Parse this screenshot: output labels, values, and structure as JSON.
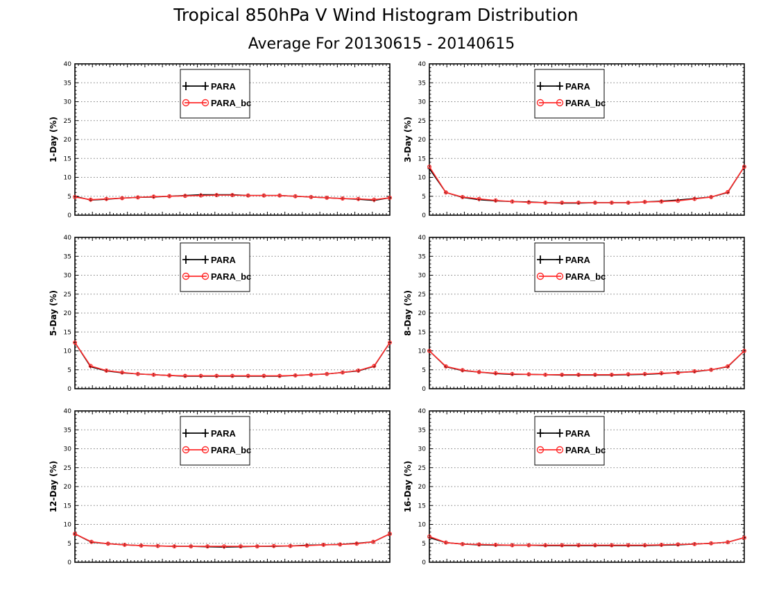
{
  "title": "Tropical 850hPa V Wind Histogram Distribution",
  "subtitle": "Average For 20130615 - 20140615",
  "chart_data": [
    {
      "type": "line",
      "ylabel": "1-Day (%)",
      "ylim": [
        0,
        40
      ],
      "yticks": [
        "0",
        "5",
        "10",
        "15",
        "20",
        "25",
        "30",
        "35",
        "40"
      ],
      "grid": true,
      "legend_position": "top-center",
      "series": [
        {
          "name": "PARA",
          "color": "#000000",
          "marker": "plus",
          "values": [
            5.0,
            4.0,
            4.2,
            4.5,
            4.7,
            4.8,
            5.0,
            5.2,
            5.4,
            5.4,
            5.4,
            5.2,
            5.2,
            5.2,
            5.0,
            4.8,
            4.6,
            4.4,
            4.2,
            3.9,
            4.6
          ]
        },
        {
          "name": "PARA_bc",
          "color": "#ff2a2a",
          "marker": "circle",
          "values": [
            4.8,
            4.1,
            4.3,
            4.5,
            4.7,
            4.9,
            5.0,
            5.1,
            5.2,
            5.3,
            5.3,
            5.2,
            5.2,
            5.2,
            5.0,
            4.8,
            4.6,
            4.4,
            4.3,
            4.1,
            4.6
          ]
        }
      ]
    },
    {
      "type": "line",
      "ylabel": "3-Day (%)",
      "ylim": [
        0,
        40
      ],
      "yticks": [
        "0",
        "5",
        "10",
        "15",
        "20",
        "25",
        "30",
        "35",
        "40"
      ],
      "grid": true,
      "legend_position": "top-center",
      "series": [
        {
          "name": "PARA",
          "color": "#000000",
          "marker": "plus",
          "values": [
            12.3,
            6.0,
            4.7,
            4.1,
            3.8,
            3.6,
            3.5,
            3.3,
            3.2,
            3.2,
            3.3,
            3.3,
            3.3,
            3.5,
            3.7,
            4.0,
            4.4,
            4.8,
            6.0,
            12.8
          ]
        },
        {
          "name": "PARA_bc",
          "color": "#ff2a2a",
          "marker": "circle",
          "values": [
            12.8,
            6.0,
            4.8,
            4.3,
            3.9,
            3.6,
            3.4,
            3.3,
            3.3,
            3.3,
            3.3,
            3.3,
            3.3,
            3.5,
            3.6,
            3.8,
            4.3,
            4.8,
            6.1,
            12.8
          ]
        }
      ]
    },
    {
      "type": "line",
      "ylabel": "5-Day (%)",
      "ylim": [
        0,
        40
      ],
      "yticks": [
        "0",
        "5",
        "10",
        "15",
        "20",
        "25",
        "30",
        "35",
        "40"
      ],
      "grid": true,
      "legend_position": "top-center",
      "series": [
        {
          "name": "PARA",
          "color": "#000000",
          "marker": "plus",
          "values": [
            12.2,
            5.8,
            4.7,
            4.2,
            3.9,
            3.7,
            3.5,
            3.3,
            3.3,
            3.3,
            3.3,
            3.3,
            3.3,
            3.3,
            3.5,
            3.7,
            3.9,
            4.3,
            4.7,
            5.9,
            12.2
          ]
        },
        {
          "name": "PARA_bc",
          "color": "#ff2a2a",
          "marker": "circle",
          "values": [
            12.2,
            6.0,
            4.8,
            4.3,
            3.9,
            3.7,
            3.5,
            3.4,
            3.4,
            3.4,
            3.4,
            3.4,
            3.4,
            3.4,
            3.5,
            3.7,
            3.9,
            4.3,
            4.8,
            6.0,
            12.2
          ]
        }
      ]
    },
    {
      "type": "line",
      "ylabel": "8-Day (%)",
      "ylim": [
        0,
        40
      ],
      "yticks": [
        "0",
        "5",
        "10",
        "15",
        "20",
        "25",
        "30",
        "35",
        "40"
      ],
      "grid": true,
      "legend_position": "top-center",
      "series": [
        {
          "name": "PARA",
          "color": "#000000",
          "marker": "plus",
          "values": [
            10.0,
            5.8,
            4.8,
            4.4,
            4.0,
            3.8,
            3.8,
            3.7,
            3.6,
            3.6,
            3.6,
            3.6,
            3.7,
            3.8,
            4.0,
            4.3,
            4.5,
            5.0,
            5.8,
            10.0
          ]
        },
        {
          "name": "PARA_bc",
          "color": "#ff2a2a",
          "marker": "circle",
          "values": [
            10.0,
            5.9,
            4.9,
            4.4,
            4.1,
            3.9,
            3.8,
            3.7,
            3.7,
            3.7,
            3.7,
            3.7,
            3.8,
            3.9,
            4.1,
            4.2,
            4.6,
            5.0,
            5.9,
            10.0
          ]
        }
      ]
    },
    {
      "type": "line",
      "ylabel": "12-Day (%)",
      "ylim": [
        0,
        40
      ],
      "yticks": [
        "0",
        "5",
        "10",
        "15",
        "20",
        "25",
        "30",
        "35",
        "40"
      ],
      "grid": true,
      "legend_position": "top-center",
      "series": [
        {
          "name": "PARA",
          "color": "#000000",
          "marker": "plus",
          "values": [
            7.5,
            5.3,
            4.9,
            4.6,
            4.4,
            4.3,
            4.2,
            4.2,
            4.1,
            4.0,
            4.1,
            4.2,
            4.2,
            4.3,
            4.5,
            4.6,
            4.7,
            5.0,
            5.4,
            7.5
          ]
        },
        {
          "name": "PARA_bc",
          "color": "#ff2a2a",
          "marker": "circle",
          "values": [
            7.5,
            5.4,
            4.9,
            4.6,
            4.4,
            4.3,
            4.2,
            4.2,
            4.2,
            4.2,
            4.2,
            4.2,
            4.3,
            4.3,
            4.4,
            4.6,
            4.7,
            4.9,
            5.4,
            7.5
          ]
        }
      ]
    },
    {
      "type": "line",
      "ylabel": "16-Day (%)",
      "ylim": [
        0,
        40
      ],
      "yticks": [
        "0",
        "5",
        "10",
        "15",
        "20",
        "25",
        "30",
        "35",
        "40"
      ],
      "grid": true,
      "legend_position": "top-center",
      "series": [
        {
          "name": "PARA",
          "color": "#000000",
          "marker": "plus",
          "values": [
            6.5,
            5.2,
            4.8,
            4.6,
            4.5,
            4.5,
            4.5,
            4.4,
            4.4,
            4.4,
            4.4,
            4.4,
            4.4,
            4.4,
            4.5,
            4.6,
            4.8,
            5.0,
            5.3,
            6.5
          ]
        },
        {
          "name": "PARA_bc",
          "color": "#ff2a2a",
          "marker": "circle",
          "values": [
            6.8,
            5.2,
            4.8,
            4.7,
            4.6,
            4.5,
            4.5,
            4.5,
            4.5,
            4.5,
            4.5,
            4.5,
            4.5,
            4.5,
            4.6,
            4.7,
            4.8,
            5.0,
            5.3,
            6.5
          ]
        }
      ]
    }
  ]
}
